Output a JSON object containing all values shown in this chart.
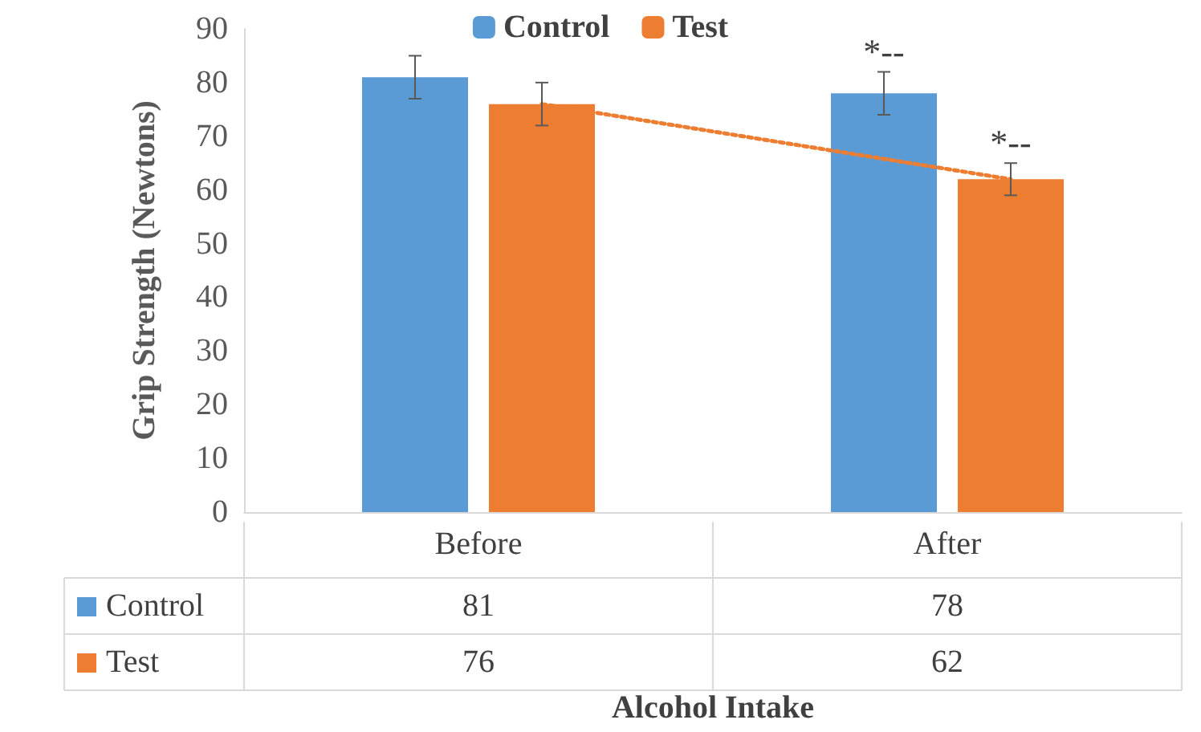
{
  "chart_data": {
    "type": "bar",
    "xlabel": "Alcohol Intake",
    "ylabel": "Grip Strength (Newtons)",
    "categories": [
      "Before",
      "After"
    ],
    "series": [
      {
        "name": "Control",
        "color": "#5b9bd5",
        "values": [
          81,
          78
        ],
        "errors": [
          4,
          4
        ],
        "value_labels": [
          "81",
          "78"
        ]
      },
      {
        "name": "Test",
        "color": "#ed7d31",
        "values": [
          76,
          62
        ],
        "errors": [
          4,
          3
        ],
        "value_labels": [
          "76",
          "62"
        ]
      },
      {
        "type": "line",
        "color": "#ed7d31",
        "x": [
          "Before",
          "After"
        ],
        "values": [
          76,
          62
        ],
        "line_style": "dotted",
        "marker": "none"
      }
    ],
    "annotations": [
      "*--",
      "*--"
    ],
    "ylim": [
      0,
      90
    ],
    "yticks": [
      0,
      10,
      20,
      30,
      40,
      50,
      60,
      70,
      80,
      90
    ],
    "grid": false,
    "legend": "top"
  }
}
